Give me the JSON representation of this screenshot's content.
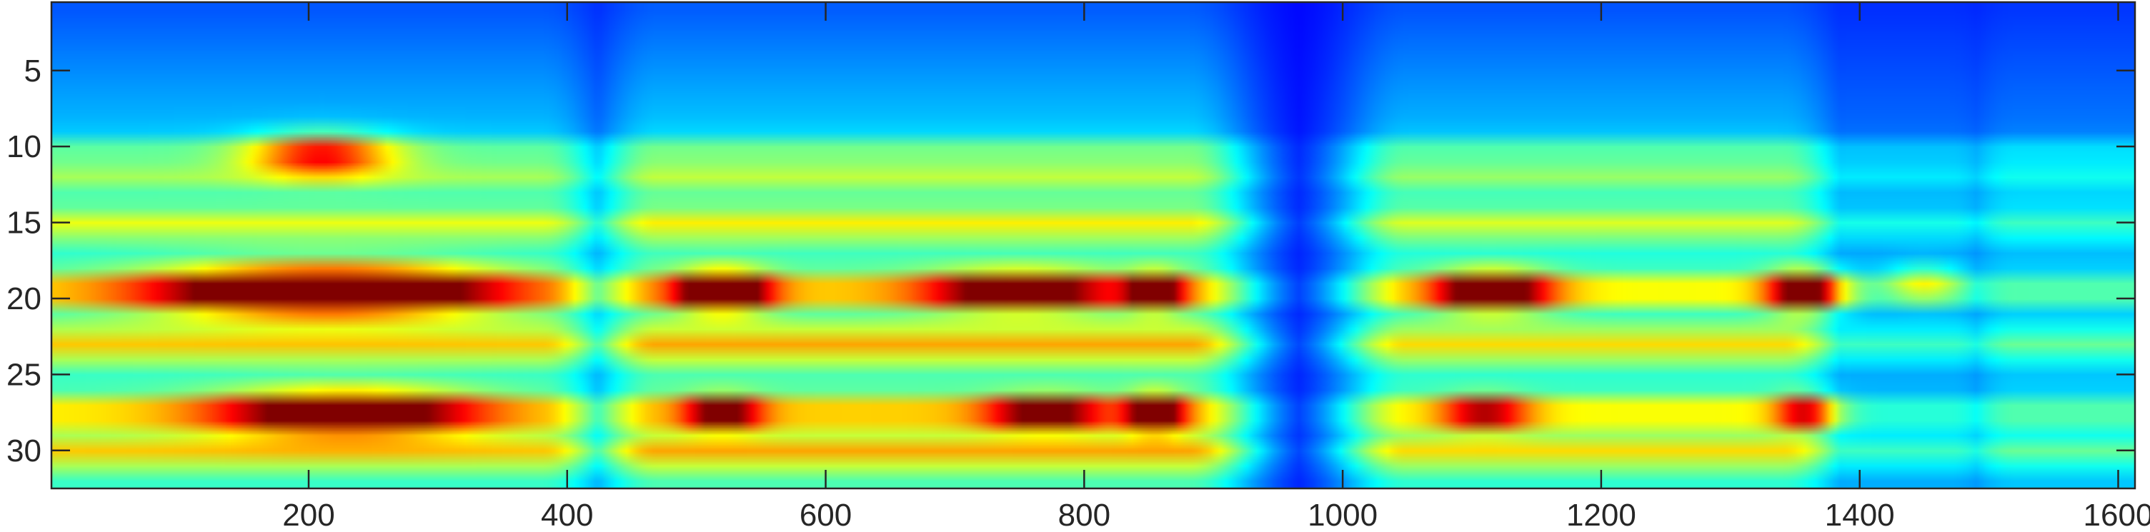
{
  "chart_data": {
    "type": "heatmap",
    "title": "",
    "xlabel": "",
    "ylabel": "",
    "colormap": "jet",
    "xlim": [
      1,
      1613
    ],
    "ylim": [
      0.5,
      32.5
    ],
    "y_reversed": true,
    "grid": false,
    "x_ticks": [
      200,
      400,
      600,
      800,
      1000,
      1200,
      1400,
      1600
    ],
    "x_tick_labels": [
      "200",
      "400",
      "600",
      "800",
      "1000",
      "1200",
      "1400",
      "1600"
    ],
    "y_ticks": [
      5,
      10,
      15,
      20,
      25,
      30
    ],
    "y_tick_labels": [
      "5",
      "10",
      "15",
      "20",
      "25",
      "30"
    ],
    "value_range": [
      0,
      1
    ],
    "rows": 32,
    "hotspots": [
      {
        "x": 210,
        "y": 10.5,
        "sx": 55,
        "sy": 1.3,
        "value": 0.45
      },
      {
        "x": 215,
        "y": 19.5,
        "sx": 130,
        "sy": 1.6,
        "value": 0.75
      },
      {
        "x": 230,
        "y": 27.5,
        "sx": 100,
        "sy": 1.4,
        "value": 0.6
      },
      {
        "x": 520,
        "y": 19.5,
        "sx": 35,
        "sy": 1.2,
        "value": 0.72
      },
      {
        "x": 520,
        "y": 27.5,
        "sx": 30,
        "sy": 1.0,
        "value": 0.5
      },
      {
        "x": 750,
        "y": 19.5,
        "sx": 70,
        "sy": 1.2,
        "value": 0.55
      },
      {
        "x": 770,
        "y": 27.5,
        "sx": 45,
        "sy": 1.0,
        "value": 0.5
      },
      {
        "x": 855,
        "y": 19.5,
        "sx": 22,
        "sy": 1.1,
        "value": 0.55
      },
      {
        "x": 855,
        "y": 27.5,
        "sx": 22,
        "sy": 1.1,
        "value": 0.6
      },
      {
        "x": 1115,
        "y": 19.5,
        "sx": 45,
        "sy": 1.2,
        "value": 0.65
      },
      {
        "x": 1110,
        "y": 27.5,
        "sx": 35,
        "sy": 1.0,
        "value": 0.42
      },
      {
        "x": 1360,
        "y": 19.5,
        "sx": 30,
        "sy": 1.2,
        "value": 0.62
      },
      {
        "x": 1360,
        "y": 27.5,
        "sx": 25,
        "sy": 1.0,
        "value": 0.42
      },
      {
        "x": 1450,
        "y": 19.0,
        "sx": 30,
        "sy": 1.2,
        "value": 0.22
      }
    ],
    "active_bands": [
      {
        "x0": 1,
        "x1": 380,
        "level": 0.62
      },
      {
        "x0": 470,
        "x1": 880,
        "level": 0.66
      },
      {
        "x0": 1050,
        "x1": 1340,
        "level": 0.6
      },
      {
        "x0": 1390,
        "x1": 1470,
        "level": 0.35
      },
      {
        "x0": 1520,
        "x1": 1613,
        "level": 0.4
      }
    ]
  }
}
